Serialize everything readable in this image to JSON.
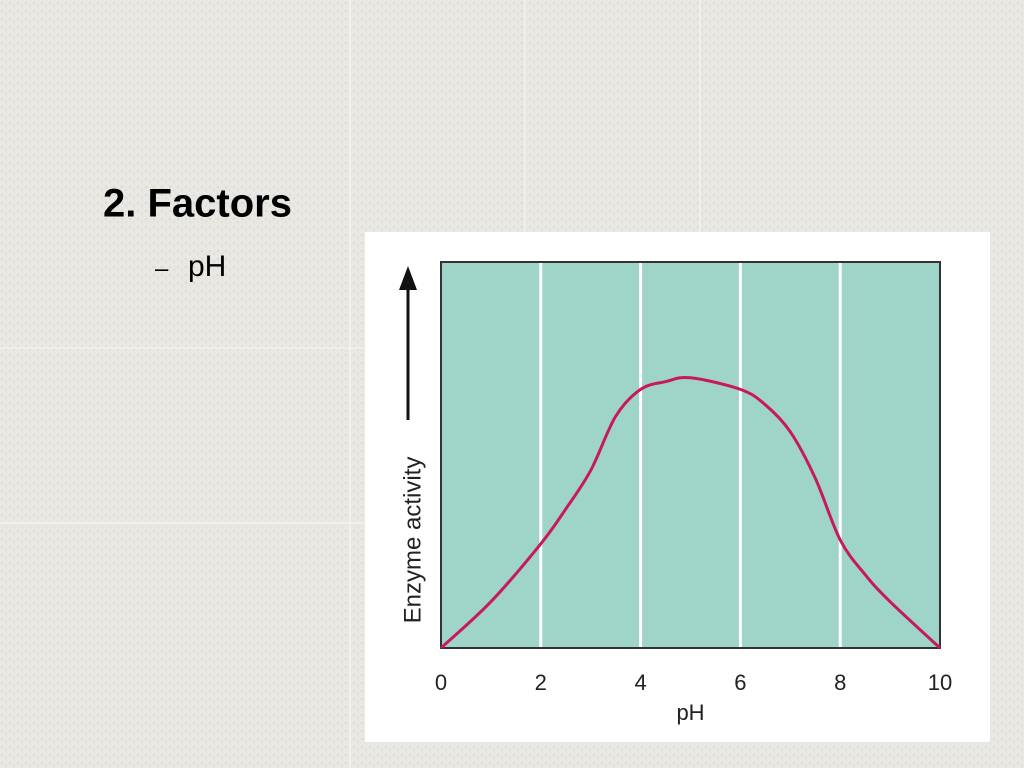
{
  "slide": {
    "title": "2.  Factors",
    "bullet": {
      "marker": "–",
      "text": "pH"
    }
  },
  "chart_data": {
    "type": "line",
    "x": [
      0,
      1,
      2,
      2.5,
      3,
      3.5,
      4,
      4.5,
      5,
      6,
      6.5,
      7,
      7.5,
      8,
      8.5,
      9,
      10
    ],
    "values": [
      0,
      0.12,
      0.27,
      0.36,
      0.46,
      0.6,
      0.67,
      0.69,
      0.7,
      0.67,
      0.63,
      0.56,
      0.44,
      0.28,
      0.19,
      0.12,
      0
    ],
    "color": "#c8185e",
    "xlim": [
      0,
      10
    ],
    "ylim": [
      0,
      1
    ],
    "xticks": [
      0,
      2,
      4,
      6,
      8,
      10
    ],
    "grid": "x",
    "xlabel": "pH",
    "ylabel": "Enzyme activity"
  }
}
